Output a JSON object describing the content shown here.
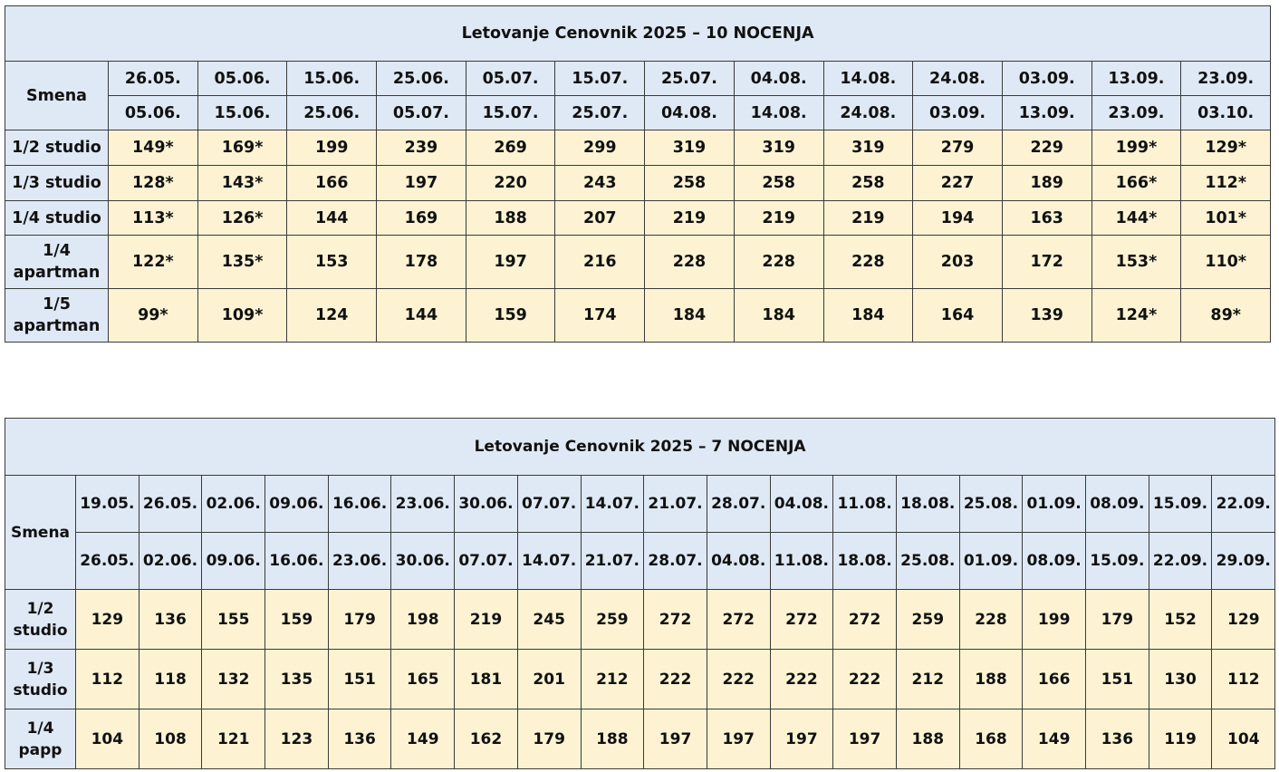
{
  "table1": {
    "title": "Letovanje Cenovnik 2025 – 10 NOCENJA",
    "header_label": "Smena",
    "from_dates": [
      "26.05.",
      "05.06.",
      "15.06.",
      "25.06.",
      "05.07.",
      "15.07.",
      "25.07.",
      "04.08.",
      "14.08.",
      "24.08.",
      "03.09.",
      "13.09.",
      "23.09."
    ],
    "to_dates": [
      "05.06.",
      "15.06.",
      "25.06.",
      "05.07.",
      "15.07.",
      "25.07.",
      "04.08.",
      "14.08.",
      "24.08.",
      "03.09.",
      "13.09.",
      "23.09.",
      "03.10."
    ],
    "rows": [
      {
        "label_lines": [
          "1/2 studio"
        ],
        "values": [
          "149*",
          "169*",
          "199",
          "239",
          "269",
          "299",
          "319",
          "319",
          "319",
          "279",
          "229",
          "199*",
          "129*"
        ]
      },
      {
        "label_lines": [
          "1/3 studio"
        ],
        "values": [
          "128*",
          "143*",
          "166",
          "197",
          "220",
          "243",
          "258",
          "258",
          "258",
          "227",
          "189",
          "166*",
          "112*"
        ]
      },
      {
        "label_lines": [
          "1/4 studio"
        ],
        "values": [
          "113*",
          "126*",
          "144",
          "169",
          "188",
          "207",
          "219",
          "219",
          "219",
          "194",
          "163",
          "144*",
          "101*"
        ]
      },
      {
        "label_lines": [
          "1/4",
          "apartman"
        ],
        "values": [
          "122*",
          "135*",
          "153",
          "178",
          "197",
          "216",
          "228",
          "228",
          "228",
          "203",
          "172",
          "153*",
          "110*"
        ]
      },
      {
        "label_lines": [
          "1/5",
          "apartman"
        ],
        "values": [
          "99*",
          "109*",
          "124",
          "144",
          "159",
          "174",
          "184",
          "184",
          "184",
          "164",
          "139",
          "124*",
          "89*"
        ]
      }
    ]
  },
  "table2": {
    "title": "Letovanje Cenovnik 2025 – 7 NOCENJA",
    "header_label": "Smena",
    "from_dates": [
      "19.05.",
      "26.05.",
      "02.06.",
      "09.06.",
      "16.06.",
      "23.06.",
      "30.06.",
      "07.07.",
      "14.07.",
      "21.07.",
      "28.07.",
      "04.08.",
      "11.08.",
      "18.08.",
      "25.08.",
      "01.09.",
      "08.09.",
      "15.09.",
      "22.09."
    ],
    "to_dates": [
      "26.05.",
      "02.06.",
      "09.06.",
      "16.06.",
      "23.06.",
      "30.06.",
      "07.07.",
      "14.07.",
      "21.07.",
      "28.07.",
      "04.08.",
      "11.08.",
      "18.08.",
      "25.08.",
      "01.09.",
      "08.09.",
      "15.09.",
      "22.09.",
      "29.09."
    ],
    "rows": [
      {
        "label_lines": [
          "1/2",
          "studio"
        ],
        "values": [
          "129",
          "136",
          "155",
          "159",
          "179",
          "198",
          "219",
          "245",
          "259",
          "272",
          "272",
          "272",
          "272",
          "259",
          "228",
          "199",
          "179",
          "152",
          "129"
        ]
      },
      {
        "label_lines": [
          "1/3",
          "studio"
        ],
        "values": [
          "112",
          "118",
          "132",
          "135",
          "151",
          "165",
          "181",
          "201",
          "212",
          "222",
          "222",
          "222",
          "222",
          "212",
          "188",
          "166",
          "151",
          "130",
          "112"
        ]
      },
      {
        "label_lines": [
          "1/4",
          "papp"
        ],
        "values": [
          "104",
          "108",
          "121",
          "123",
          "136",
          "149",
          "162",
          "179",
          "188",
          "197",
          "197",
          "197",
          "197",
          "188",
          "168",
          "149",
          "136",
          "119",
          "104"
        ]
      }
    ]
  }
}
